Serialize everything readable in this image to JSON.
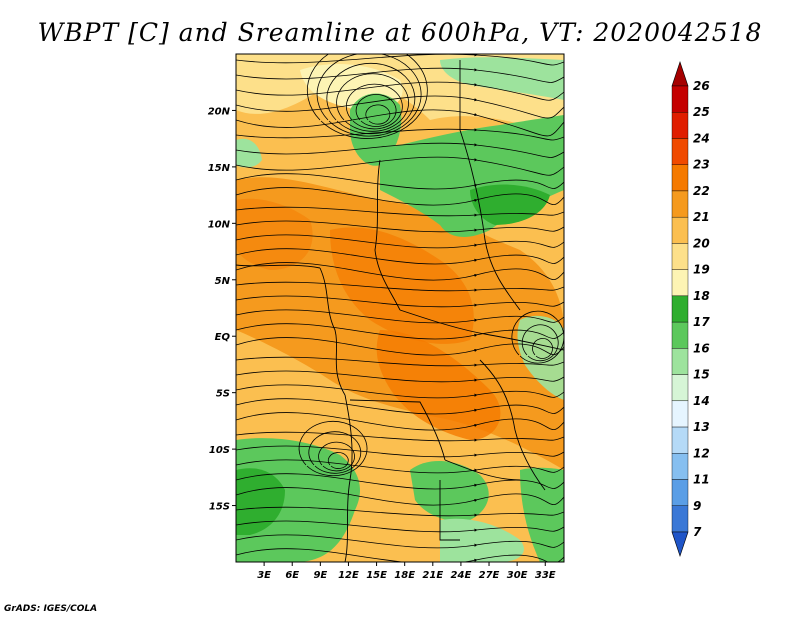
{
  "title": "WBPT [C] and Sreamline at 600hPa, VT: 2020042518",
  "footer": "GrADS: IGES/COLA",
  "map": {
    "lat_labels": [
      "20N",
      "15N",
      "10N",
      "5N",
      "EQ",
      "5S",
      "10S",
      "15S"
    ],
    "lat_values": [
      20,
      15,
      10,
      5,
      0,
      -5,
      -10,
      -15
    ],
    "lon_labels": [
      "3E",
      "6E",
      "9E",
      "12E",
      "15E",
      "18E",
      "21E",
      "24E",
      "27E",
      "30E",
      "33E"
    ],
    "lon_values": [
      3,
      6,
      9,
      12,
      15,
      18,
      21,
      24,
      27,
      30,
      33
    ],
    "lon_range": [
      0,
      35
    ],
    "lat_range": [
      -20,
      25
    ]
  },
  "colorbar": {
    "levels": [
      "26",
      "25",
      "24",
      "23",
      "22",
      "21",
      "20",
      "19",
      "18",
      "17",
      "16",
      "15",
      "14",
      "13",
      "12",
      "11",
      "9",
      "7"
    ],
    "colors": [
      "#a50000",
      "#c40000",
      "#e01e00",
      "#f04a00",
      "#f57a00",
      "#f59a1e",
      "#fbbf50",
      "#fde08a",
      "#fdf4b4",
      "#2fae2f",
      "#5cc85c",
      "#9de39d",
      "#d6f5d6",
      "#e6f5ff",
      "#b5daf7",
      "#86bff0",
      "#5a9ee6",
      "#3a78d6",
      "#1f55c8"
    ]
  }
}
